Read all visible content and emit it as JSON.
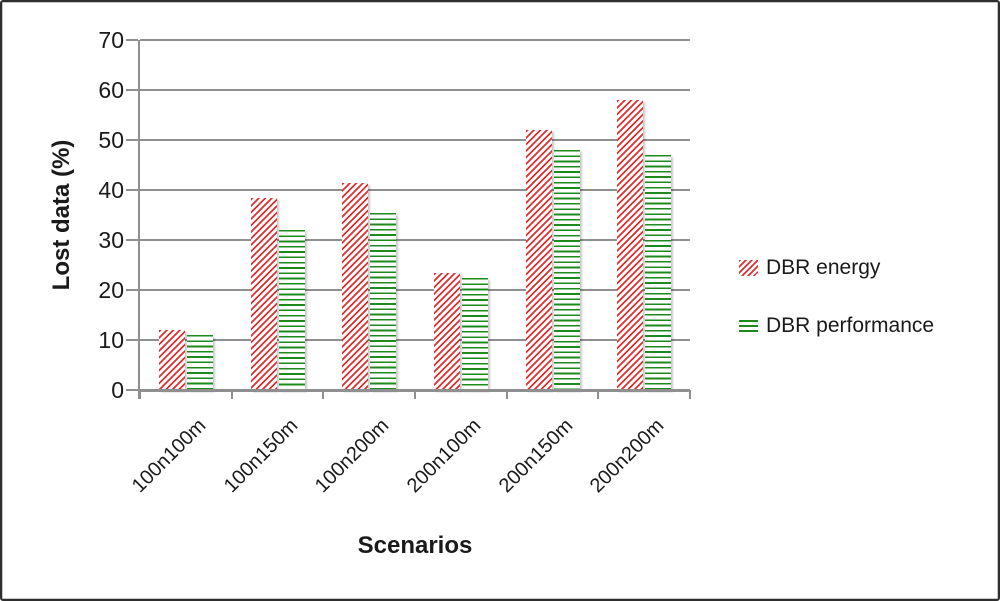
{
  "figure": {
    "background": "#ffffff",
    "border_color": "#2e2e2e"
  },
  "chart_data": {
    "type": "bar",
    "title": "",
    "xlabel": "Scenarios",
    "ylabel": "Lost data (%)",
    "ylim": [
      0,
      70
    ],
    "yticks": [
      0,
      10,
      20,
      30,
      40,
      50,
      60,
      70
    ],
    "grid": true,
    "legend_position": "right",
    "categories": [
      "100n100m",
      "100n150m",
      "100n200m",
      "200n100m",
      "200n150m",
      "200n200m"
    ],
    "series": [
      {
        "name": "DBR energy",
        "pattern": "diagonal-hatch",
        "color": "#e03030",
        "values": [
          12,
          38.5,
          41.5,
          23.5,
          52,
          58
        ]
      },
      {
        "name": "DBR performance",
        "pattern": "horizontal-lines",
        "color": "#1e8a1e",
        "values": [
          11,
          32,
          35.5,
          22.5,
          48,
          47
        ]
      }
    ],
    "gridline_color": "#8f8f8f",
    "axis_color": "#8f8f8f",
    "text_color": "#1a1a1a"
  }
}
